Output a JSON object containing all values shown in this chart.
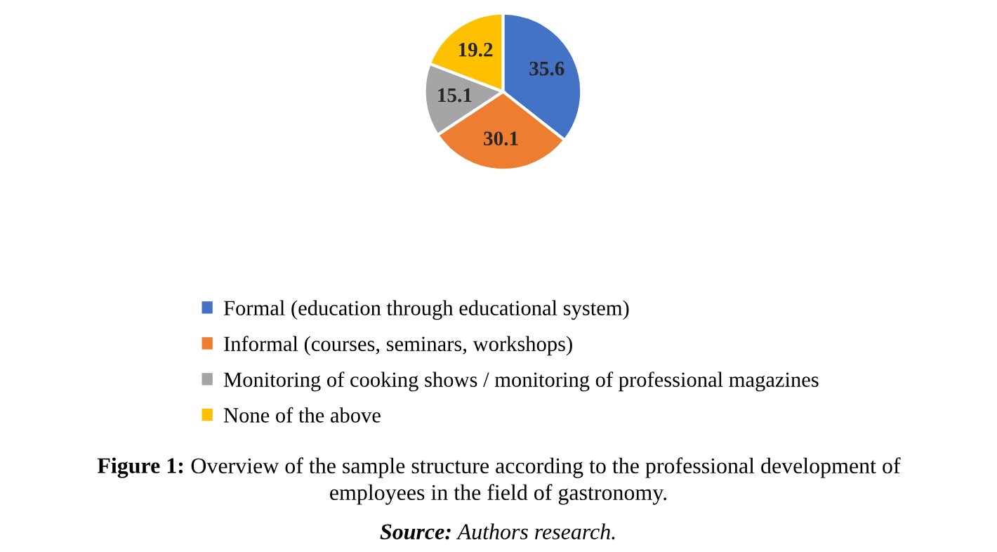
{
  "chart_data": {
    "type": "pie",
    "categories": [
      "Formal (education through educational system)",
      "Informal (courses, seminars, workshops)",
      "Monitoring of cooking shows / monitoring of professional magazines",
      "None of the above"
    ],
    "values": [
      35.6,
      30.1,
      15.1,
      19.2
    ],
    "colors": [
      "#4472c4",
      "#ed7d31",
      "#a5a5a5",
      "#ffc000"
    ],
    "data_labels": true,
    "legend": "bottom",
    "annotations": [
      "Figure 1: Overview of the sample structure according to the professional development of\nemployees in the field of gastronomy.",
      "Source: Authors research."
    ]
  }
}
